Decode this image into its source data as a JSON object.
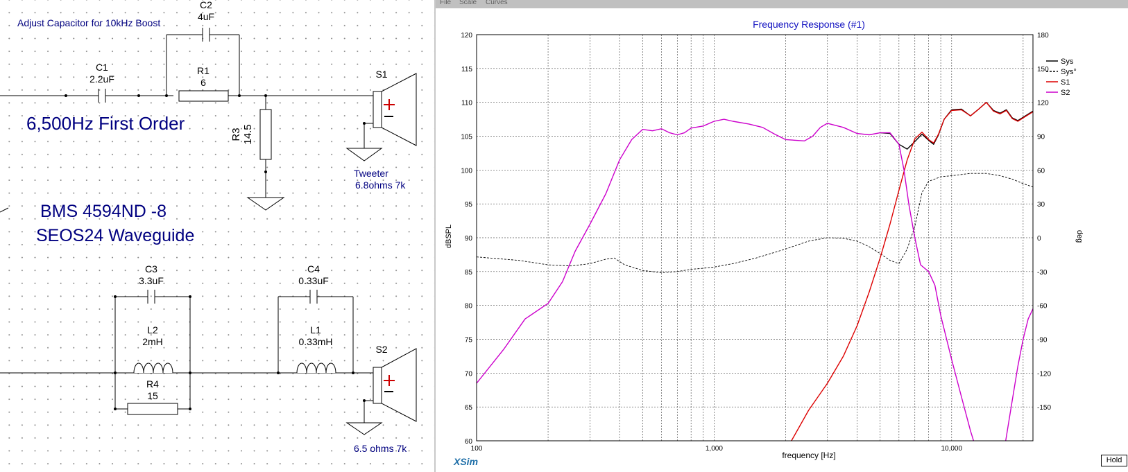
{
  "schematic": {
    "note": "Adjust Capacitor for 10kHz Boost",
    "order_label": "6,500Hz First Order",
    "driver_model": "BMS 4594ND -8",
    "waveguide": "SEOS24 Waveguide",
    "components": {
      "c1": {
        "name": "C1",
        "value": "2.2uF"
      },
      "c2": {
        "name": "C2",
        "value": "4uF"
      },
      "r1": {
        "name": "R1",
        "value": "6"
      },
      "r3": {
        "name": "R3",
        "value": "14.5"
      },
      "c3": {
        "name": "C3",
        "value": "3.3uF"
      },
      "l2": {
        "name": "L2",
        "value": "2mH"
      },
      "r4": {
        "name": "R4",
        "value": "15"
      },
      "c4": {
        "name": "C4",
        "value": "0.33uF"
      },
      "l1": {
        "name": "L1",
        "value": "0.33mH"
      }
    },
    "speakers": {
      "s1": {
        "name": "S1",
        "label1": "Tweeter",
        "label2": "6.8ohms 7k"
      },
      "s2": {
        "name": "S2",
        "label1": "6.5 ohms 7k"
      }
    }
  },
  "graph_window": {
    "menu": [
      "File",
      "Scale",
      "Curves"
    ],
    "logo": "XSim",
    "hold_button": "Hold"
  },
  "chart_data": {
    "type": "line",
    "title": "Frequency Response (#1)",
    "xlabel": "frequency [Hz]",
    "ylabel": "dBSPL",
    "y2label": "deg",
    "x_scale": "log",
    "xlim": [
      100,
      22000
    ],
    "ylim": [
      60,
      120
    ],
    "y2lim": [
      -180,
      180
    ],
    "x_tick_labels": [
      {
        "value": 100,
        "label": "100"
      },
      {
        "value": 1000,
        "label": "1,000"
      },
      {
        "value": 10000,
        "label": "10,000"
      }
    ],
    "y_ticks": [
      60,
      65,
      70,
      75,
      80,
      85,
      90,
      95,
      100,
      105,
      110,
      115,
      120
    ],
    "y2_ticks": [
      -150,
      -120,
      -90,
      -60,
      -30,
      0,
      30,
      60,
      90,
      120,
      150,
      180
    ],
    "grid": true,
    "legend_position": "right",
    "legend": [
      {
        "name": "Sys",
        "color": "#000000",
        "style": "solid"
      },
      {
        "name": "Sys°",
        "color": "#000000",
        "style": "dashed"
      },
      {
        "name": "S1",
        "color": "#dd0000",
        "style": "solid"
      },
      {
        "name": "S2",
        "color": "#cc00cc",
        "style": "solid"
      }
    ],
    "series": [
      {
        "name": "Sys",
        "axis": "left",
        "color": "#000000",
        "points": [
          [
            5000,
            105.5
          ],
          [
            5500,
            105.4
          ],
          [
            6000,
            103.8
          ],
          [
            6500,
            103.1
          ],
          [
            7000,
            104.2
          ],
          [
            7500,
            105.3
          ],
          [
            8000,
            104.4
          ],
          [
            8400,
            103.8
          ],
          [
            8800,
            105.2
          ],
          [
            9300,
            107.5
          ],
          [
            10000,
            108.9
          ],
          [
            11000,
            109.0
          ],
          [
            12000,
            108.0
          ],
          [
            13000,
            109.0
          ],
          [
            14000,
            110.0
          ],
          [
            15000,
            108.8
          ],
          [
            16000,
            108.4
          ],
          [
            17000,
            108.9
          ],
          [
            18000,
            107.7
          ],
          [
            19000,
            107.3
          ],
          [
            20000,
            107.8
          ],
          [
            22000,
            108.7
          ]
        ]
      },
      {
        "name": "Sys°",
        "axis": "right",
        "color": "#000000",
        "points": [
          [
            100,
            -17
          ],
          [
            150,
            -20
          ],
          [
            200,
            -24
          ],
          [
            250,
            -25
          ],
          [
            300,
            -23
          ],
          [
            350,
            -19
          ],
          [
            380,
            -18
          ],
          [
            420,
            -24
          ],
          [
            500,
            -29
          ],
          [
            600,
            -31
          ],
          [
            700,
            -30
          ],
          [
            800,
            -28
          ],
          [
            900,
            -27
          ],
          [
            1000,
            -26
          ],
          [
            1200,
            -23
          ],
          [
            1500,
            -18
          ],
          [
            2000,
            -10
          ],
          [
            2500,
            -3
          ],
          [
            3000,
            0
          ],
          [
            3500,
            -0.5
          ],
          [
            4000,
            -3
          ],
          [
            4500,
            -8
          ],
          [
            5000,
            -14
          ],
          [
            5500,
            -20
          ],
          [
            6000,
            -23
          ],
          [
            6500,
            -10
          ],
          [
            7000,
            10
          ],
          [
            7500,
            40
          ],
          [
            8000,
            50
          ],
          [
            9000,
            54
          ],
          [
            10000,
            55
          ],
          [
            12000,
            57
          ],
          [
            14000,
            57
          ],
          [
            16000,
            55
          ],
          [
            18000,
            52
          ],
          [
            20000,
            48
          ],
          [
            22000,
            45
          ]
        ]
      },
      {
        "name": "S1",
        "axis": "left",
        "color": "#dd0000",
        "points": [
          [
            2100,
            59.8
          ],
          [
            2500,
            64.5
          ],
          [
            3000,
            68.5
          ],
          [
            3500,
            72.5
          ],
          [
            4000,
            77.0
          ],
          [
            4500,
            82.0
          ],
          [
            5000,
            87.0
          ],
          [
            5500,
            92.0
          ],
          [
            6000,
            97.0
          ],
          [
            6500,
            101.5
          ],
          [
            7000,
            104.6
          ],
          [
            7500,
            105.6
          ],
          [
            8000,
            104.5
          ],
          [
            8400,
            104.0
          ],
          [
            8800,
            105.3
          ],
          [
            9300,
            107.5
          ],
          [
            10000,
            108.8
          ],
          [
            11000,
            108.9
          ],
          [
            12000,
            108.0
          ],
          [
            13000,
            109.0
          ],
          [
            14000,
            110.0
          ],
          [
            15000,
            108.7
          ],
          [
            16000,
            108.3
          ],
          [
            17000,
            108.8
          ],
          [
            18000,
            107.6
          ],
          [
            19000,
            107.2
          ],
          [
            20000,
            107.7
          ],
          [
            22000,
            108.6
          ]
        ]
      },
      {
        "name": "S2",
        "axis": "left",
        "color": "#cc00cc",
        "points": [
          [
            100,
            68.5
          ],
          [
            130,
            73.5
          ],
          [
            160,
            78.0
          ],
          [
            200,
            80.3
          ],
          [
            230,
            83.5
          ],
          [
            260,
            88.0
          ],
          [
            300,
            92.0
          ],
          [
            350,
            96.5
          ],
          [
            400,
            101.5
          ],
          [
            450,
            104.5
          ],
          [
            500,
            106.0
          ],
          [
            550,
            105.8
          ],
          [
            600,
            106.1
          ],
          [
            650,
            105.5
          ],
          [
            700,
            105.2
          ],
          [
            750,
            105.5
          ],
          [
            800,
            106.2
          ],
          [
            900,
            106.5
          ],
          [
            1000,
            107.2
          ],
          [
            1100,
            107.5
          ],
          [
            1200,
            107.2
          ],
          [
            1400,
            106.8
          ],
          [
            1600,
            106.3
          ],
          [
            1800,
            105.3
          ],
          [
            2000,
            104.5
          ],
          [
            2400,
            104.3
          ],
          [
            2600,
            105.0
          ],
          [
            2800,
            106.3
          ],
          [
            3000,
            106.9
          ],
          [
            3500,
            106.3
          ],
          [
            4000,
            105.4
          ],
          [
            4500,
            105.2
          ],
          [
            5000,
            105.5
          ],
          [
            5500,
            105.5
          ],
          [
            6000,
            103.8
          ],
          [
            6300,
            100.0
          ],
          [
            6600,
            95.0
          ],
          [
            7000,
            90.0
          ],
          [
            7400,
            86.0
          ],
          [
            8000,
            85.0
          ],
          [
            8500,
            83.0
          ],
          [
            9000,
            78.5
          ],
          [
            10000,
            72.0
          ],
          [
            11000,
            66.5
          ],
          [
            12000,
            61.5
          ],
          [
            12500,
            59.5
          ]
        ]
      },
      {
        "name": "S2",
        "axis": "left",
        "color": "#cc00cc",
        "points": [
          [
            16800,
            59.5
          ],
          [
            18000,
            66.0
          ],
          [
            19000,
            71.0
          ],
          [
            20000,
            75.0
          ],
          [
            21000,
            78.0
          ],
          [
            22000,
            79.5
          ]
        ]
      }
    ]
  }
}
